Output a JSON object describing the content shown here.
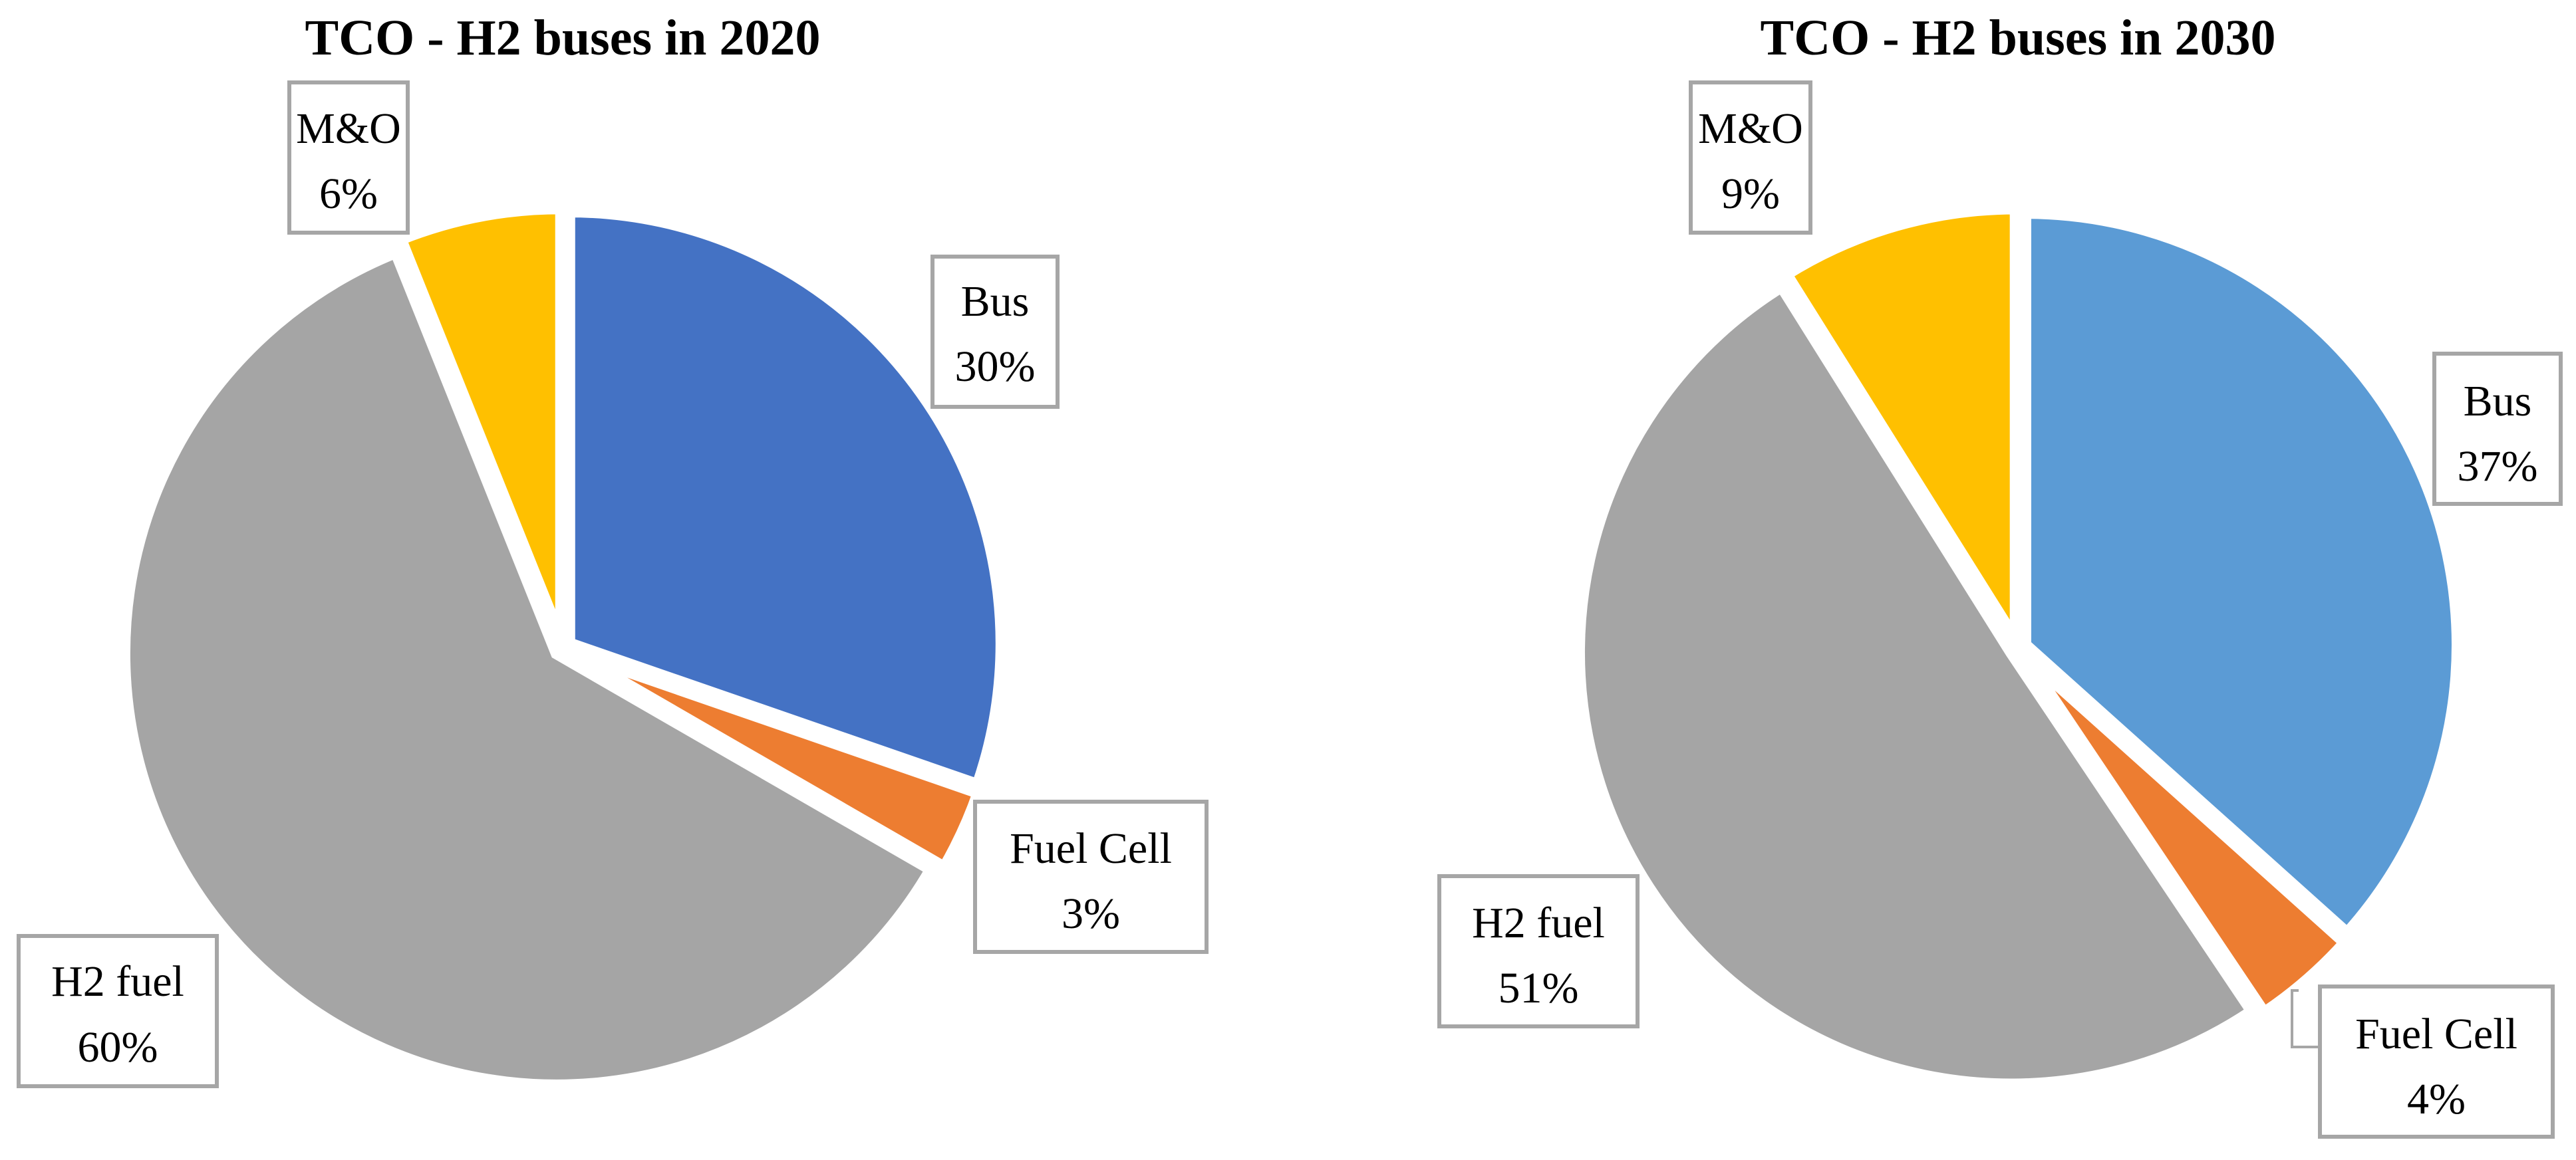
{
  "chart_data": [
    {
      "type": "pie",
      "title": "TCO - H2 buses in 2020",
      "slices": [
        {
          "name": "Bus",
          "value": 30,
          "label": "30%",
          "color": "#4472C4"
        },
        {
          "name": "Fuel Cell",
          "value": 3,
          "label": "3%",
          "color": "#ED7D31"
        },
        {
          "name": "H2 fuel",
          "value": 60,
          "label": "60%",
          "color": "#A5A5A5"
        },
        {
          "name": "M&O",
          "value": 6,
          "label": "6%",
          "color": "#FFC000"
        }
      ]
    },
    {
      "type": "pie",
      "title": "TCO - H2 buses in 2030",
      "slices": [
        {
          "name": "Bus",
          "value": 37,
          "label": "37%",
          "color": "#5B9BD5"
        },
        {
          "name": "Fuel Cell",
          "value": 4,
          "label": "4%",
          "color": "#ED7D31"
        },
        {
          "name": "H2 fuel",
          "value": 51,
          "label": "51%",
          "color": "#A5A5A5"
        },
        {
          "name": "M&O",
          "value": 9,
          "label": "9%",
          "color": "#FFC000"
        }
      ]
    }
  ]
}
